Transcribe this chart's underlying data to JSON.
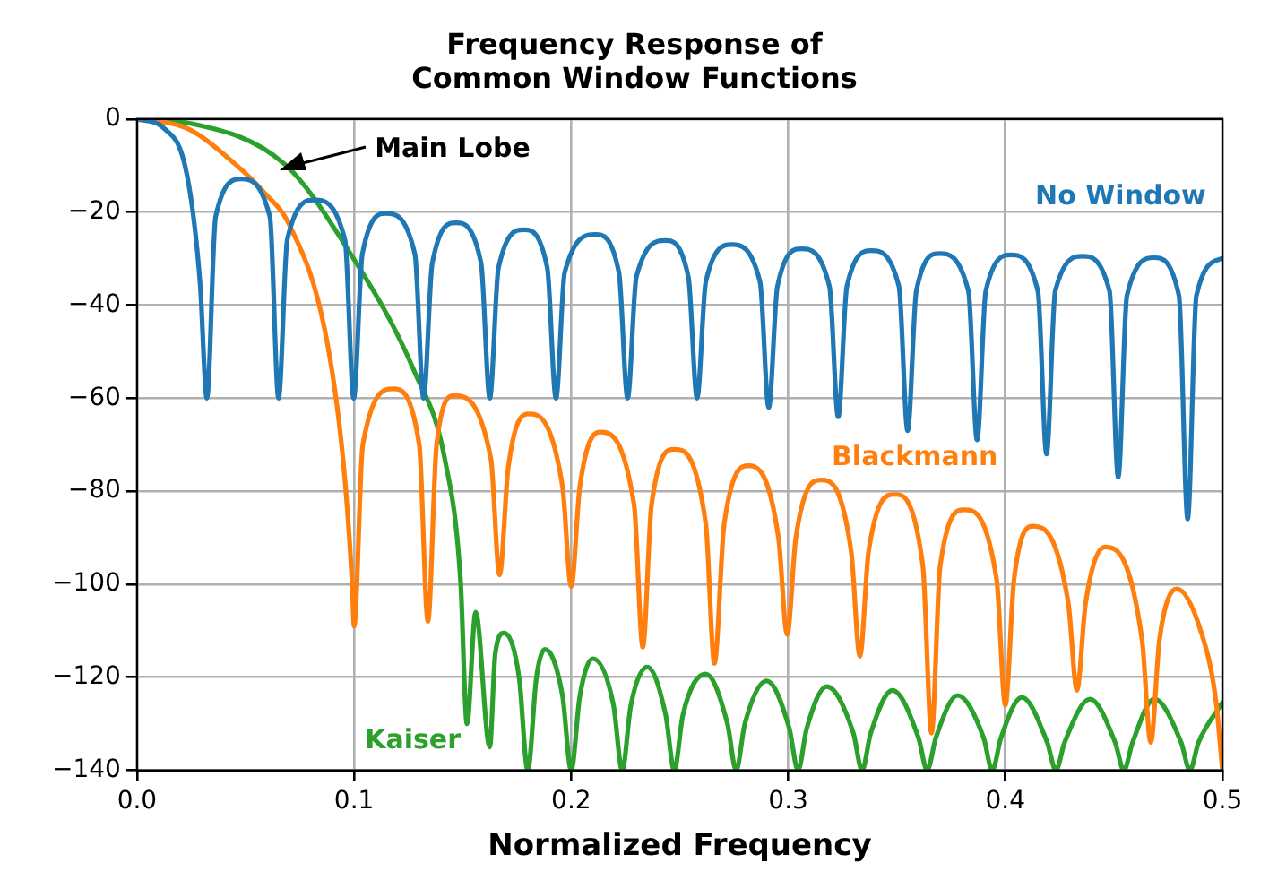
{
  "chart_data": {
    "type": "line",
    "title": "Frequency Response of\nCommon Window Functions",
    "xlabel": "Normalized Frequency",
    "xlim": [
      0,
      0.5
    ],
    "xticks": [
      {
        "value": 0,
        "label": "0.0"
      },
      {
        "value": 0.1,
        "label": "0.1"
      },
      {
        "value": 0.2,
        "label": "0.2"
      },
      {
        "value": 0.3,
        "label": "0.3"
      },
      {
        "value": 0.4,
        "label": "0.4"
      },
      {
        "value": 0.5,
        "label": "0.5"
      }
    ],
    "ylim": [
      -140,
      0
    ],
    "yticks": [
      {
        "value": -140,
        "label": "−140"
      },
      {
        "value": -120,
        "label": "−120"
      },
      {
        "value": -100,
        "label": "−100"
      },
      {
        "value": -80,
        "label": "−80"
      },
      {
        "value": -60,
        "label": "−60"
      },
      {
        "value": -40,
        "label": "−40"
      },
      {
        "value": -20,
        "label": "−20"
      },
      0
    ],
    "grid": true,
    "legend": false,
    "marker": "none",
    "line_style": "solid",
    "annotations": [
      "Main Lobe"
    ],
    "series": [
      {
        "name": "No Window",
        "color": "#1f77b4",
        "x": [
          0,
          0.0124,
          0.023,
          0.029,
          0.0322,
          0.0362,
          0.0479,
          0.0612,
          0.0652,
          0.0692,
          0.0817,
          0.0958,
          0.0998,
          0.1038,
          0.1147,
          0.128,
          0.132,
          0.136,
          0.1469,
          0.1585,
          0.1625,
          0.1665,
          0.1782,
          0.189,
          0.193,
          0.197,
          0.2112,
          0.222,
          0.226,
          0.23,
          0.2434,
          0.254,
          0.258,
          0.262,
          0.2739,
          0.287,
          0.291,
          0.295,
          0.3061,
          0.319,
          0.323,
          0.327,
          0.3383,
          0.351,
          0.355,
          0.359,
          0.3696,
          0.383,
          0.387,
          0.391,
          0.4026,
          0.415,
          0.419,
          0.423,
          0.4356,
          0.448,
          0.452,
          0.456,
          0.4686,
          0.48,
          0.484,
          0.488,
          0.5
        ],
        "values": [
          0,
          -2,
          -12,
          -35,
          -60,
          -21,
          -12.9,
          -21,
          -60,
          -26,
          -17.4,
          -26,
          -60,
          -29,
          -20.3,
          -29,
          -60,
          -31,
          -22.3,
          -31,
          -60,
          -32,
          -23.8,
          -32,
          -60,
          -33,
          -24.8,
          -33,
          -60,
          -34,
          -26.1,
          -34,
          -60,
          -35,
          -27,
          -35,
          -62,
          -36,
          -27.9,
          -36,
          -64,
          -36,
          -28.3,
          -36,
          -67,
          -37,
          -28.9,
          -37,
          -69,
          -37,
          -29.2,
          -37,
          -72,
          -37,
          -29.5,
          -37,
          -77,
          -38,
          -29.8,
          -38,
          -86,
          -38,
          -29.9
        ]
      },
      {
        "name": "Blackmann",
        "color": "#ff7f0e",
        "x": [
          0,
          0.023,
          0.045,
          0.059,
          0.07,
          0.0866,
          0.095,
          0.099,
          0.1,
          0.104,
          0.118,
          0.13,
          0.134,
          0.138,
          0.146,
          0.163,
          0.167,
          0.171,
          0.18,
          0.196,
          0.2,
          0.204,
          0.213,
          0.229,
          0.233,
          0.237,
          0.2475,
          0.262,
          0.266,
          0.2705,
          0.282,
          0.2955,
          0.2995,
          0.3035,
          0.315,
          0.329,
          0.333,
          0.337,
          0.349,
          0.362,
          0.366,
          0.37,
          0.381,
          0.396,
          0.4,
          0.404,
          0.413,
          0.429,
          0.433,
          0.437,
          0.446,
          0.463,
          0.467,
          0.471,
          0.479,
          0.49,
          0.497,
          0.5
        ],
        "values": [
          0,
          -2,
          -9.6,
          -16,
          -22.6,
          -45.6,
          -73.6,
          -99,
          -109,
          -70,
          -58,
          -70,
          -108,
          -70,
          -59.5,
          -73,
          -98,
          -75,
          -63.4,
          -79,
          -100.5,
          -79,
          -67.3,
          -83,
          -113.5,
          -83,
          -71,
          -87,
          -117,
          -87,
          -74.5,
          -90,
          -110.8,
          -90,
          -77.6,
          -93,
          -115.5,
          -93,
          -80.7,
          -96,
          -132,
          -96,
          -84,
          -99,
          -126,
          -99,
          -87.5,
          -104,
          -122.8,
          -104,
          -92,
          -112,
          -134,
          -112,
          -101,
          -110,
          -125,
          -140
        ]
      },
      {
        "name": "Kaiser",
        "color": "#2ca02c",
        "x": [
          0,
          0.023,
          0.068,
          0.095,
          0.128,
          0.142,
          0.149,
          0.152,
          0.156,
          0.1625,
          0.165,
          0.169,
          0.176,
          0.18,
          0.184,
          0.188,
          0.196,
          0.2,
          0.204,
          0.21,
          0.2195,
          0.2235,
          0.2275,
          0.235,
          0.2435,
          0.2475,
          0.2515,
          0.262,
          0.272,
          0.276,
          0.28,
          0.29,
          0.3005,
          0.3045,
          0.3085,
          0.3177,
          0.33,
          0.334,
          0.338,
          0.348,
          0.36,
          0.364,
          0.368,
          0.378,
          0.39,
          0.394,
          0.398,
          0.4076,
          0.4193,
          0.4233,
          0.4273,
          0.439,
          0.4506,
          0.4546,
          0.4586,
          0.4686,
          0.481,
          0.485,
          0.489,
          0.5
        ],
        "values": [
          0,
          -0.8,
          -9.7,
          -26.5,
          -54.5,
          -73.6,
          -99,
          -130,
          -106,
          -135,
          -115,
          -110.5,
          -120,
          -140,
          -120,
          -114,
          -124,
          -140,
          -124,
          -116,
          -126,
          -140,
          -126,
          -117.8,
          -128,
          -140,
          -128,
          -119.3,
          -130,
          -140,
          -130,
          -120.8,
          -131,
          -140,
          -131,
          -122,
          -132,
          -140,
          -132,
          -122.8,
          -133,
          -140,
          -133,
          -123.9,
          -133,
          -140,
          -133,
          -124.3,
          -134,
          -140,
          -134,
          -124.7,
          -134,
          -140,
          -134,
          -124.7,
          -134,
          -140,
          -134,
          -125.4
        ]
      }
    ]
  }
}
